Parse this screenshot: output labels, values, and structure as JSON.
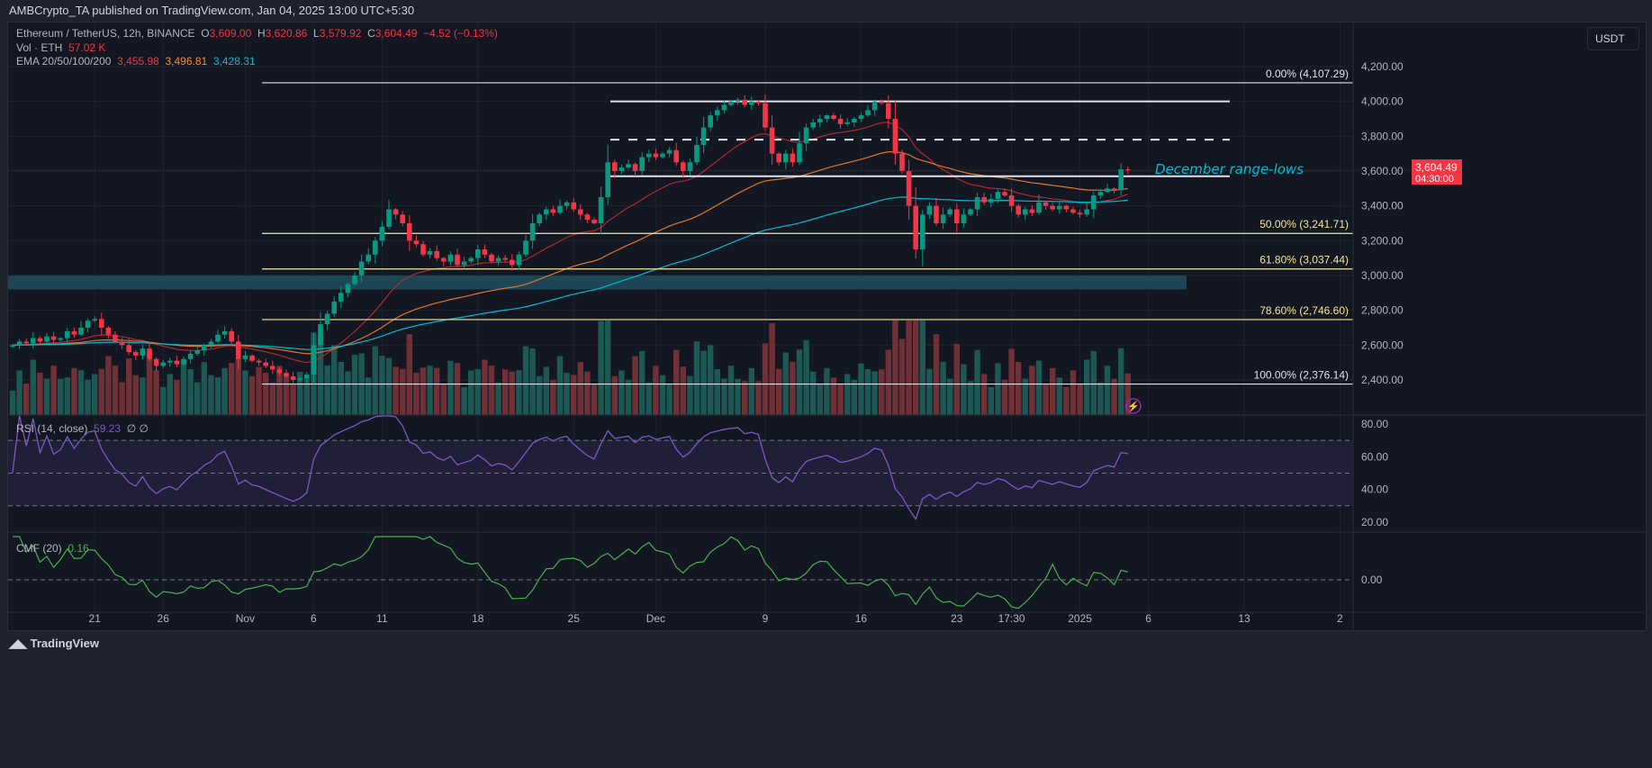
{
  "published": "AMBCrypto_TA published on TradingView.com, Jan 04, 2025 13:00 UTC+5:30",
  "legend": {
    "symbol": "Ethereum / TetherUS, 12h, BINANCE",
    "o_label": "O",
    "o": "3,609.00",
    "h_label": "H",
    "h": "3,620.86",
    "l_label": "L",
    "l": "3,579.92",
    "c_label": "C",
    "c": "3,604.49",
    "change": "−4.52 (−0.13%)",
    "vol_label": "Vol · ETH",
    "vol": "57.02 K",
    "ema_label": "EMA 20/50/100/200",
    "ema1": "3,455.98",
    "ema2": "3,496.81",
    "ema3": "3,428.31",
    "rsi_label": "RSI (14, close)",
    "rsi": "59.23",
    "rsi_extra": "∅ ∅",
    "cmf_label": "CMF (20)",
    "cmf": "0.16"
  },
  "currency_button": "USDT",
  "last_price": {
    "value": "3,604.49",
    "countdown": "04:30:00",
    "color": "#f23645"
  },
  "annotation": "December range-lows",
  "footer": "TradingView",
  "colors": {
    "up": "#089981",
    "down": "#f23645",
    "ema20": "#b22833",
    "ema50": "#e0752d",
    "ema100": "#00bcd4",
    "rsi": "#7e57c2",
    "cmf": "#4caf50",
    "fib": "#f5e6a3",
    "zone": "#1c4655"
  },
  "chart_data": {
    "type": "candlestick",
    "interval": "12h",
    "start_date": "2024-10-15",
    "close": [
      2600,
      2620,
      2610,
      2640,
      2620,
      2650,
      2630,
      2640,
      2680,
      2660,
      2700,
      2740,
      2750,
      2700,
      2660,
      2620,
      2600,
      2560,
      2540,
      2580,
      2520,
      2480,
      2500,
      2510,
      2490,
      2520,
      2550,
      2570,
      2600,
      2620,
      2660,
      2680,
      2620,
      2520,
      2540,
      2510,
      2500,
      2480,
      2460,
      2440,
      2420,
      2400,
      2410,
      2430,
      2600,
      2720,
      2780,
      2850,
      2900,
      2950,
      3000,
      3080,
      3120,
      3200,
      3280,
      3380,
      3350,
      3300,
      3200,
      3180,
      3120,
      3140,
      3100,
      3080,
      3120,
      3060,
      3080,
      3100,
      3150,
      3120,
      3080,
      3100,
      3090,
      3060,
      3120,
      3200,
      3300,
      3350,
      3380,
      3360,
      3400,
      3420,
      3380,
      3350,
      3320,
      3300,
      3450,
      3650,
      3600,
      3620,
      3640,
      3600,
      3680,
      3700,
      3680,
      3700,
      3720,
      3650,
      3600,
      3650,
      3750,
      3850,
      3920,
      3950,
      3980,
      4000,
      4010,
      3980,
      4000,
      3990,
      3850,
      3700,
      3650,
      3700,
      3650,
      3760,
      3850,
      3880,
      3900,
      3920,
      3900,
      3870,
      3880,
      3900,
      3920,
      3950,
      4000,
      3990,
      3900,
      3700,
      3600,
      3400,
      3150,
      3350,
      3400,
      3300,
      3350,
      3380,
      3300,
      3350,
      3380,
      3450,
      3420,
      3440,
      3480,
      3460,
      3400,
      3350,
      3380,
      3360,
      3420,
      3400,
      3380,
      3400,
      3380,
      3360,
      3350,
      3380,
      3460,
      3480,
      3500,
      3490,
      3610,
      3604.49
    ],
    "price_ticks": [
      "4,200.00",
      "4,000.00",
      "3,800.00",
      "3,600.00",
      "3,400.00",
      "3,200.00",
      "3,000.00",
      "2,800.00",
      "2,600.00",
      "2,400.00"
    ],
    "price_tick_values": [
      4200,
      4000,
      3800,
      3600,
      3400,
      3200,
      3000,
      2800,
      2600,
      2400
    ],
    "rsi_ticks": [
      "80.00",
      "60.00",
      "40.00",
      "20.00"
    ],
    "cmf_ticks": [
      "0.00"
    ],
    "time_ticks": [
      "21",
      "26",
      "Nov",
      "6",
      "11",
      "18",
      "25",
      "Dec",
      "9",
      "16",
      "23",
      "17:30",
      "2025",
      "6",
      "13",
      "2"
    ],
    "time_tick_dates": [
      "2024-10-21",
      "2024-10-26",
      "2024-11-01",
      "2024-11-06",
      "2024-11-11",
      "2024-11-18",
      "2024-11-25",
      "2024-12-01",
      "2024-12-09",
      "2024-12-16",
      "2024-12-23",
      "2024-12-27",
      "2025-01-01",
      "2025-01-06",
      "2025-01-13",
      "2025-01-20"
    ],
    "fib_levels": [
      {
        "label": "0.00% (4,107.29)",
        "price": 4107.29,
        "color": "#e0e3eb"
      },
      {
        "label": "50.00% (3,241.71)",
        "price": 3241.71,
        "color": "#f5e6a3"
      },
      {
        "label": "61.80% (3,037.44)",
        "price": 3037.44,
        "color": "#f5e6a3"
      },
      {
        "label": "78.60% (2,746.60)",
        "price": 2746.6,
        "color": "#f5e6a3"
      },
      {
        "label": "100.00% (2,376.14)",
        "price": 2376.14,
        "color": "#e0e3eb"
      }
    ],
    "horizontal_lines": [
      {
        "price": 4000,
        "style": "solid"
      },
      {
        "price": 3780,
        "style": "dashed"
      },
      {
        "price": 3570,
        "style": "solid"
      }
    ],
    "support_zone": [
      2920,
      3000
    ],
    "rsi_bands": [
      70,
      50,
      30
    ],
    "ylim": [
      2250,
      4290
    ]
  }
}
